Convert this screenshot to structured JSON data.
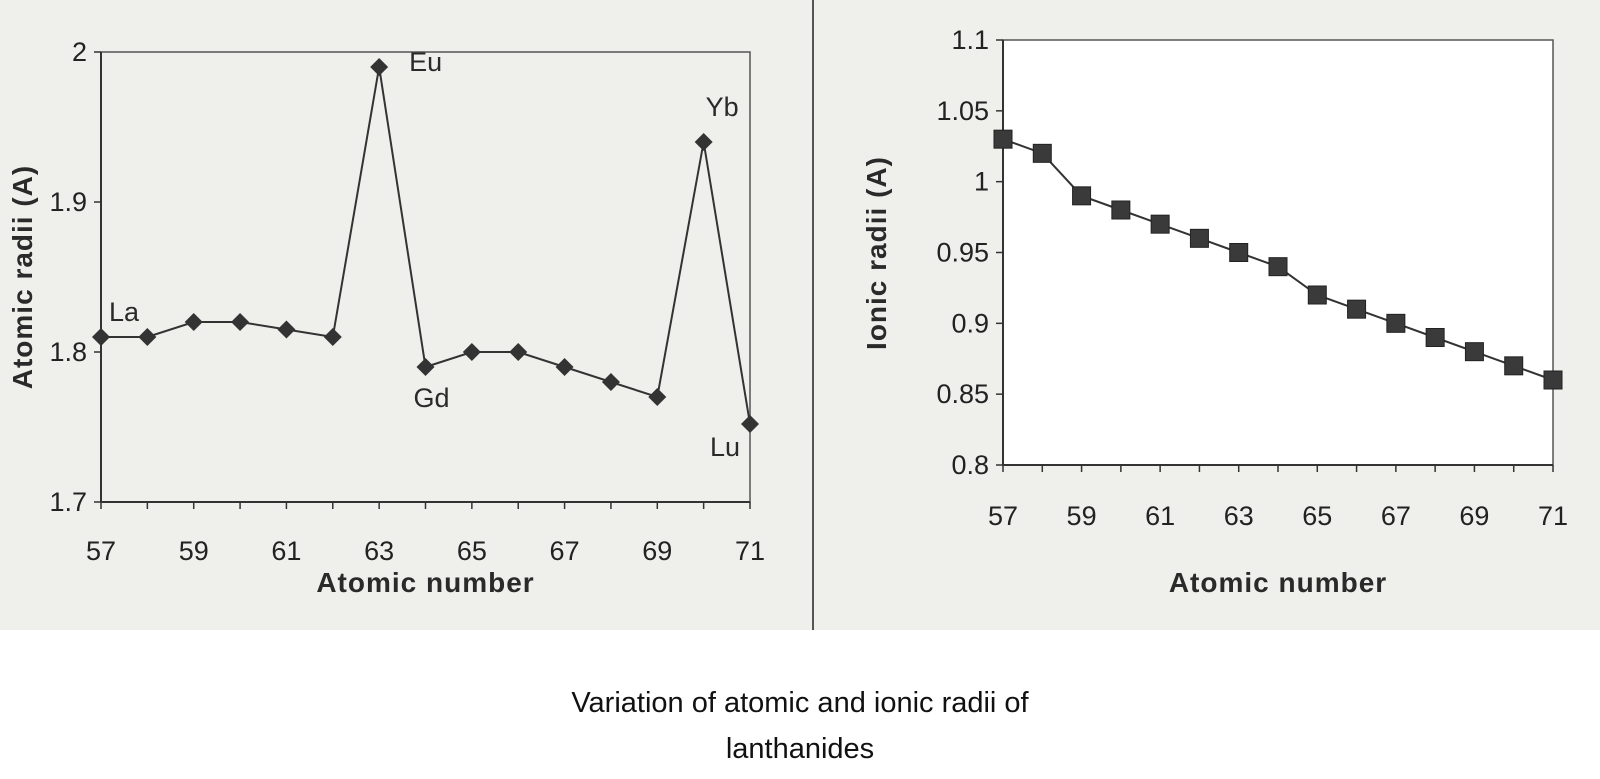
{
  "chart_data": [
    {
      "type": "line",
      "xlabel": "Atomic number",
      "ylabel": "Atomic radii (A)",
      "xlim": [
        57,
        71
      ],
      "ylim": [
        1.7,
        2.0
      ],
      "x_ticks": [
        "57",
        "59",
        "61",
        "63",
        "65",
        "67",
        "69",
        "71"
      ],
      "y_ticks": [
        "1.7",
        "1.8",
        "1.9",
        "2"
      ],
      "marker": "diamond",
      "grid": false,
      "series": [
        {
          "x": [
            57,
            58,
            59,
            60,
            61,
            62,
            63,
            64,
            65,
            66,
            67,
            68,
            69,
            70,
            71
          ],
          "values": [
            1.81,
            1.81,
            1.82,
            1.82,
            1.815,
            1.81,
            1.99,
            1.79,
            1.8,
            1.8,
            1.79,
            1.78,
            1.77,
            1.94,
            1.752
          ]
        }
      ],
      "annotations": [
        {
          "text": "La",
          "x": 57
        },
        {
          "text": "Eu",
          "x": 63
        },
        {
          "text": "Gd",
          "x": 64
        },
        {
          "text": "Yb",
          "x": 70
        },
        {
          "text": "Lu",
          "x": 71
        }
      ]
    },
    {
      "type": "line",
      "xlabel": "Atomic number",
      "ylabel": "Ionic radii (A)",
      "xlim": [
        57,
        71
      ],
      "ylim": [
        0.8,
        1.1
      ],
      "x_ticks": [
        "57",
        "59",
        "61",
        "63",
        "65",
        "67",
        "69",
        "71"
      ],
      "y_ticks": [
        "0.8",
        "0.85",
        "0.9",
        "0.95",
        "1",
        "1.05",
        "1.1"
      ],
      "marker": "square",
      "grid": false,
      "series": [
        {
          "x": [
            57,
            58,
            59,
            60,
            61,
            62,
            63,
            64,
            65,
            66,
            67,
            68,
            69,
            70,
            71
          ],
          "values": [
            1.03,
            1.02,
            0.99,
            0.98,
            0.97,
            0.96,
            0.95,
            0.94,
            0.92,
            0.91,
            0.9,
            0.89,
            0.88,
            0.87,
            0.86
          ]
        }
      ]
    }
  ],
  "caption": {
    "line1": "Variation of atomic and ionic radii of",
    "line2": "lanthanides"
  },
  "colors": {
    "panel": "#efefec",
    "ink": "#2a2a2a",
    "marker": "#333333"
  }
}
